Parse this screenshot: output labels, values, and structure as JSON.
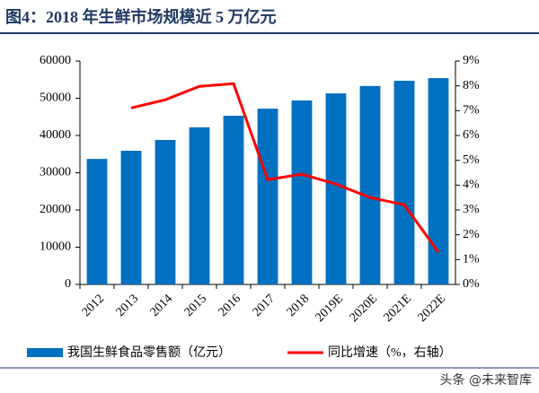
{
  "chart_data": {
    "type": "bar",
    "title": "图4：2018 年生鲜市场规模近 5 万亿元",
    "categories": [
      "2012",
      "2013",
      "2014",
      "2015",
      "2016",
      "2017",
      "2018",
      "2019E",
      "2020E",
      "2021E",
      "2022E"
    ],
    "series": [
      {
        "name": "我国生鲜食品零售额（亿元）",
        "type": "bar",
        "color": "#0070c0",
        "values": [
          33700,
          35900,
          38800,
          42200,
          45300,
          47200,
          49400,
          51300,
          53300,
          54700,
          55400
        ]
      },
      {
        "name": "同比增速（%，右轴）",
        "type": "line",
        "axis": "y2",
        "color": "#ff0000",
        "values": [
          null,
          7.11,
          7.44,
          7.98,
          8.09,
          4.22,
          4.44,
          4.04,
          3.5,
          3.21,
          1.3
        ]
      }
    ],
    "ylim": [
      0,
      60000
    ],
    "yticks": [
      0,
      10000,
      20000,
      30000,
      40000,
      50000,
      60000
    ],
    "y2lim": [
      0,
      9
    ],
    "y2ticks": [
      {
        "value": 0,
        "label": "0%"
      },
      {
        "value": 1,
        "label": "1%"
      },
      {
        "value": 2,
        "label": "2%"
      },
      {
        "value": 3,
        "label": "3%"
      },
      {
        "value": 4,
        "label": "4%"
      },
      {
        "value": 5,
        "label": "5%"
      },
      {
        "value": 6,
        "label": "6%"
      },
      {
        "value": 7,
        "label": "7%"
      },
      {
        "value": 8,
        "label": "8%"
      },
      {
        "value": 9,
        "label": "9%"
      }
    ],
    "grid": false,
    "watermark": "头条 @未来智库"
  }
}
